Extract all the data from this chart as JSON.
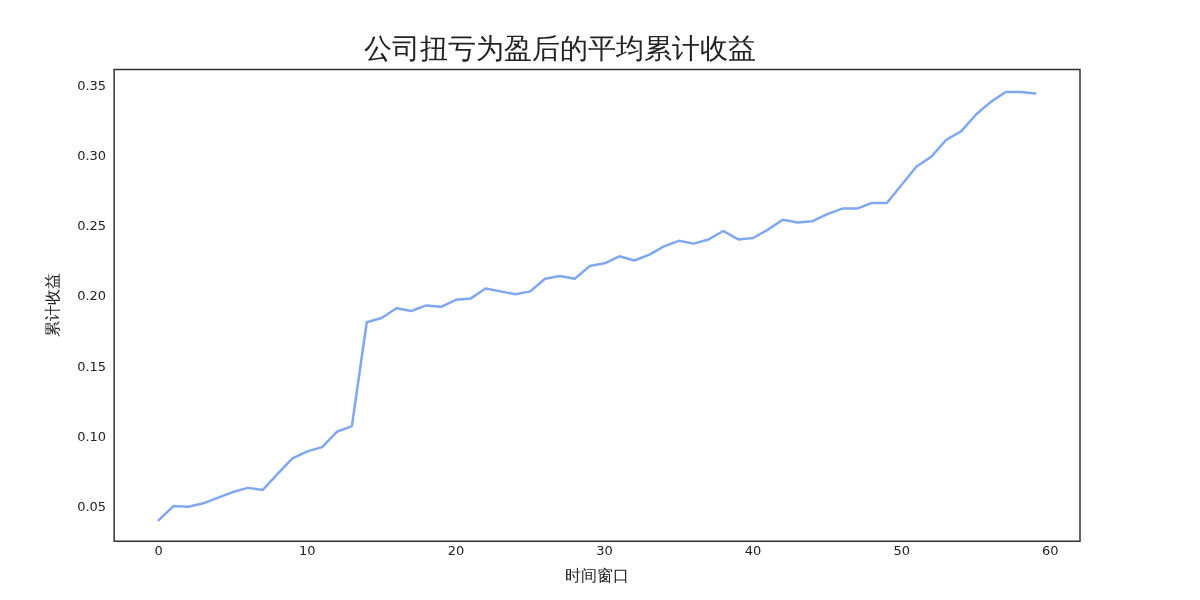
{
  "chart_data": {
    "type": "line",
    "title": "公司扭亏为盈后的平均累计收益",
    "xlabel": "时间窗口",
    "ylabel": "累计收益",
    "x": [
      0,
      1,
      2,
      3,
      4,
      5,
      6,
      7,
      8,
      9,
      10,
      11,
      12,
      13,
      14,
      15,
      16,
      17,
      18,
      19,
      20,
      21,
      22,
      23,
      24,
      25,
      26,
      27,
      28,
      29,
      30,
      31,
      32,
      33,
      34,
      35,
      36,
      37,
      38,
      39,
      40,
      41,
      42,
      43,
      44,
      45,
      46,
      47,
      48,
      49,
      50,
      51,
      52,
      53,
      54,
      55,
      56,
      57,
      58,
      59
    ],
    "series": [
      {
        "color": "#7fa8f0",
        "values": [
          0.041,
          0.051,
          0.0505,
          0.053,
          0.057,
          0.061,
          0.064,
          0.0625,
          0.074,
          0.085,
          0.09,
          0.093,
          0.104,
          0.108,
          0.182,
          0.185,
          0.192,
          0.19,
          0.194,
          0.193,
          0.198,
          0.199,
          0.206,
          0.204,
          0.202,
          0.204,
          0.213,
          0.215,
          0.213,
          0.222,
          0.224,
          0.229,
          0.226,
          0.23,
          0.236,
          0.24,
          0.238,
          0.241,
          0.247,
          0.241,
          0.242,
          0.248,
          0.255,
          0.253,
          0.254,
          0.259,
          0.263,
          0.263,
          0.267,
          0.267,
          0.28,
          0.293,
          0.3,
          0.312,
          0.318,
          0.33,
          0.339,
          0.346,
          0.346,
          0.345
        ]
      }
    ],
    "xlim": [
      -3,
      62
    ],
    "xticks": [
      0,
      10,
      20,
      30,
      40,
      50,
      60
    ],
    "ylim": [
      0.026,
      0.362
    ],
    "yticks": [
      0.05,
      {
        "value": 0.1,
        "label": "0.10"
      },
      0.15,
      {
        "value": 0.2,
        "label": "0.20"
      },
      0.25,
      {
        "value": 0.3,
        "label": "0.30"
      },
      0.35
    ],
    "grid": false,
    "legend": false,
    "marker": "none",
    "line_style": "solid"
  }
}
